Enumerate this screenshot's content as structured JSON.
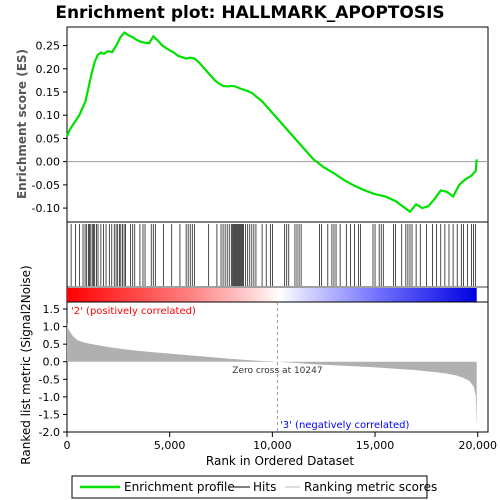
{
  "colors": {
    "es_line": "#00e000",
    "hits": "#000000",
    "metric_fill": "#b0b0b0",
    "pos_label": "#ff0000",
    "neg_label": "#0000ff",
    "zero_line": "#999999"
  },
  "chart_data": {
    "type": "line",
    "title": "Enrichment plot: HALLMARK_APOPTOSIS",
    "es_panel": {
      "ylabel": "Enrichment score (ES)",
      "ylim": [
        -0.13,
        0.29
      ],
      "yticks": [
        "0.25",
        "0.20",
        "0.15",
        "0.10",
        "0.05",
        "0.00",
        "-0.05",
        "-0.10"
      ],
      "x": [
        0,
        150,
        300,
        450,
        600,
        750,
        900,
        1050,
        1200,
        1350,
        1500,
        1650,
        1800,
        2000,
        2200,
        2400,
        2600,
        2800,
        3000,
        3200,
        3400,
        3600,
        3800,
        4000,
        4200,
        4400,
        4600,
        4800,
        5000,
        5200,
        5400,
        5600,
        5800,
        6000,
        6200,
        6400,
        6600,
        6800,
        7000,
        7200,
        7400,
        7600,
        7800,
        8000,
        8200,
        8400,
        8600,
        8800,
        9000,
        9500,
        10000,
        10500,
        11000,
        11500,
        12000,
        12500,
        13000,
        13500,
        14000,
        14500,
        15000,
        15500,
        16000,
        16400,
        16700,
        17000,
        17300,
        17600,
        17900,
        18200,
        18500,
        18800,
        19100,
        19400,
        19700,
        19900,
        19950
      ],
      "y": [
        0.055,
        0.07,
        0.08,
        0.09,
        0.1,
        0.115,
        0.13,
        0.16,
        0.19,
        0.215,
        0.23,
        0.235,
        0.232,
        0.238,
        0.236,
        0.25,
        0.268,
        0.278,
        0.272,
        0.268,
        0.262,
        0.258,
        0.256,
        0.255,
        0.27,
        0.262,
        0.252,
        0.245,
        0.24,
        0.235,
        0.228,
        0.225,
        0.222,
        0.224,
        0.222,
        0.215,
        0.205,
        0.195,
        0.185,
        0.175,
        0.168,
        0.163,
        0.162,
        0.163,
        0.162,
        0.158,
        0.155,
        0.152,
        0.148,
        0.13,
        0.105,
        0.08,
        0.055,
        0.03,
        0.005,
        -0.012,
        -0.025,
        -0.04,
        -0.052,
        -0.062,
        -0.07,
        -0.075,
        -0.085,
        -0.098,
        -0.108,
        -0.092,
        -0.1,
        -0.096,
        -0.08,
        -0.062,
        -0.065,
        -0.075,
        -0.05,
        -0.038,
        -0.03,
        -0.02,
        0.005
      ]
    },
    "hits_panel": {
      "hit_ranks": [
        10,
        200,
        420,
        600,
        780,
        880,
        960,
        1040,
        1100,
        1160,
        1230,
        1290,
        1350,
        1430,
        1510,
        1650,
        1780,
        1900,
        2060,
        2180,
        2300,
        2390,
        2470,
        2550,
        2620,
        2700,
        2780,
        2850,
        3100,
        3200,
        3300,
        3550,
        3700,
        3800,
        4100,
        4200,
        4300,
        4700,
        5100,
        5500,
        5800,
        5900,
        6000,
        6100,
        6200,
        6900,
        7300,
        7500,
        7600,
        7700,
        7800,
        7900,
        8000,
        8050,
        8100,
        8150,
        8200,
        8250,
        8300,
        8350,
        8400,
        8450,
        8500,
        8550,
        8600,
        8700,
        8800,
        8900,
        9000,
        9100,
        9200,
        9500,
        9700,
        9900,
        10000,
        10600,
        10700,
        10800,
        11100,
        11200,
        11300,
        11400,
        12300,
        12400,
        12700,
        12900,
        13000,
        13100,
        13300,
        13600,
        13800,
        14000,
        14200,
        14300,
        14900,
        15000,
        15200,
        15300,
        15400,
        15900,
        16000,
        16300,
        16500,
        16600,
        16700,
        16800,
        17000,
        17200,
        17500,
        17800,
        18000,
        18200,
        18400,
        18600,
        18800,
        19000,
        19200,
        19300,
        19500,
        19700,
        19800,
        19900
      ]
    },
    "metric_panel": {
      "ylabel": "Ranked list metric (Signal2Noise)",
      "ylim": [
        -2.0,
        1.7
      ],
      "yticks": [
        "1.5",
        "1.0",
        "0.5",
        "0.0",
        "-0.5",
        "-1.0",
        "-1.5",
        "-2.0"
      ],
      "x": [
        0,
        50,
        150,
        300,
        500,
        800,
        1200,
        2000,
        3000,
        4000,
        5000,
        6000,
        7000,
        8000,
        9000,
        9500,
        10000,
        10247,
        11000,
        12000,
        13000,
        14000,
        15000,
        16000,
        17000,
        17500,
        18000,
        18500,
        19000,
        19300,
        19600,
        19800,
        19900,
        19950
      ],
      "y": [
        1.1,
        0.95,
        0.85,
        0.72,
        0.62,
        0.55,
        0.5,
        0.42,
        0.34,
        0.28,
        0.23,
        0.18,
        0.13,
        0.08,
        0.04,
        0.02,
        0.01,
        0.0,
        -0.03,
        -0.07,
        -0.1,
        -0.13,
        -0.16,
        -0.2,
        -0.24,
        -0.27,
        -0.3,
        -0.34,
        -0.4,
        -0.46,
        -0.55,
        -0.7,
        -0.95,
        -1.85
      ],
      "pos_label": "'2' (positively correlated)",
      "neg_label": "'3' (negatively correlated)",
      "zero_cross_label": "Zero cross at 10247",
      "zero_cross": 10247
    },
    "xaxis": {
      "label": "Rank in Ordered Dataset",
      "xlim": [
        0,
        20500
      ],
      "ticks": [
        0,
        5000,
        10000,
        15000,
        20000
      ],
      "tick_labels": [
        "0",
        "5,000",
        "10,000",
        "15,000",
        "20,000"
      ],
      "n_genes": 19950
    },
    "legend": {
      "placement": "bottom",
      "entries": [
        "Enrichment profile",
        "Hits",
        "Ranking metric scores"
      ]
    }
  }
}
